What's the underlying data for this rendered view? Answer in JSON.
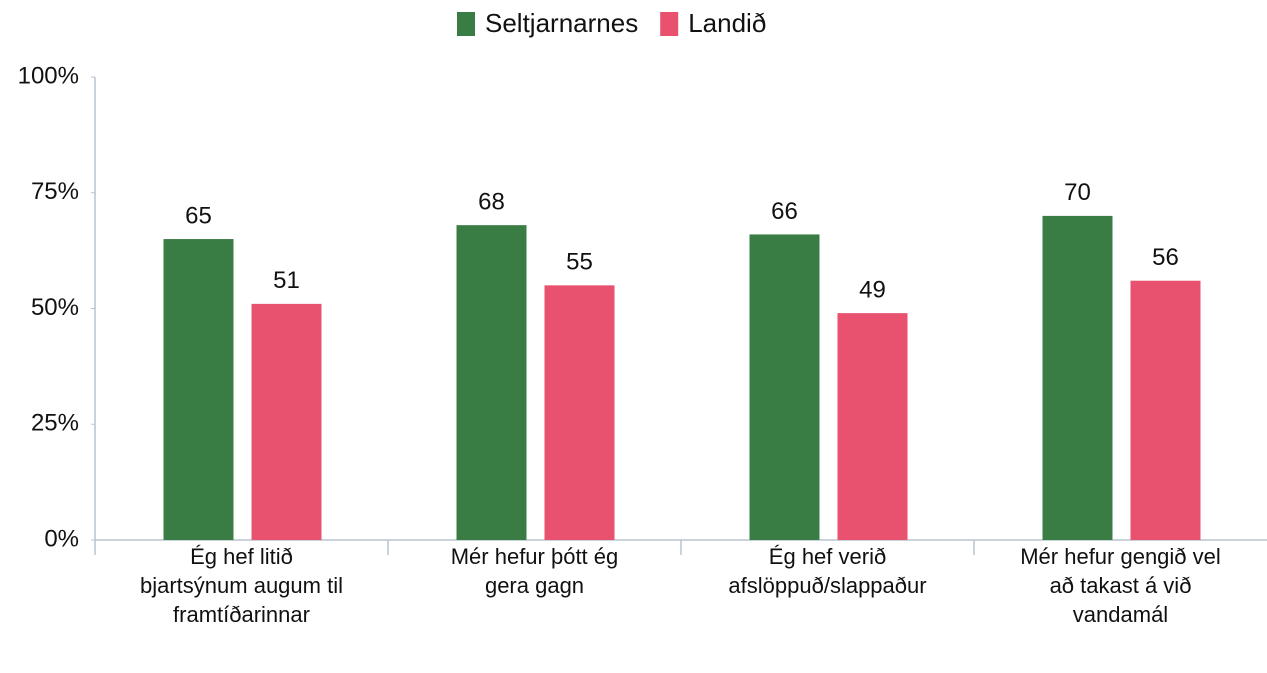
{
  "chart_data": {
    "type": "bar",
    "categories": [
      "Ég hef litið bjartsýnum augum til framtíðarinnar",
      "Mér hefur þótt ég gera gagn",
      "Ég hef verið afslöppuð/slappaður",
      "Mér hefur gengið vel að takast á við vandamál"
    ],
    "series": [
      {
        "name": "Seltjarnarnes",
        "color": "#3a7d44",
        "values": [
          65,
          68,
          66,
          70
        ]
      },
      {
        "name": "Landið",
        "color": "#e8526f",
        "values": [
          51,
          55,
          49,
          56
        ]
      }
    ],
    "ylim": [
      0,
      100
    ],
    "yticks": [
      {
        "value": 0,
        "label": "0%"
      },
      {
        "value": 25,
        "label": "25%"
      },
      {
        "value": 50,
        "label": "50%"
      },
      {
        "value": 75,
        "label": "75%"
      },
      {
        "value": 100,
        "label": "100%"
      }
    ],
    "grid": false,
    "legend": "top"
  }
}
